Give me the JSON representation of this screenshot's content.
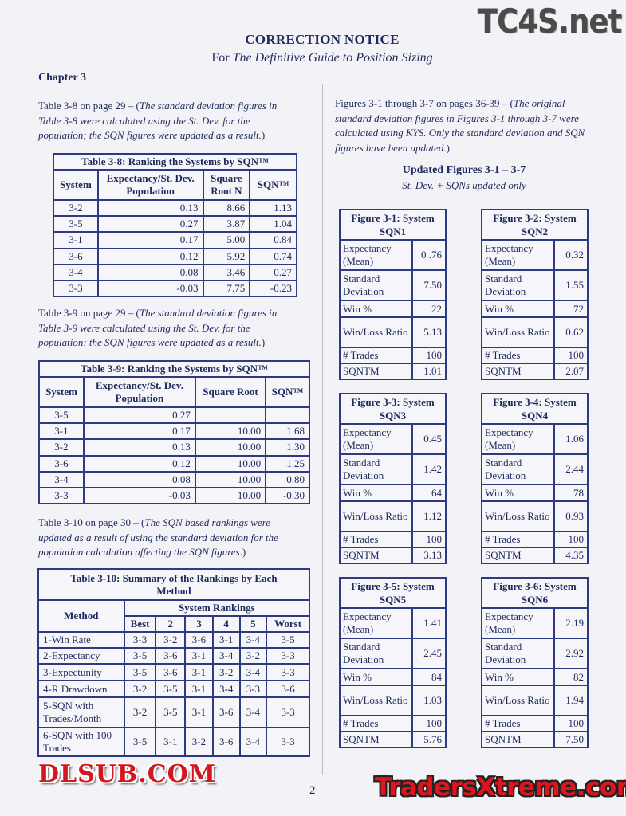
{
  "header": {
    "title": "CORRECTION NOTICE",
    "subtitle_prefix": "For ",
    "subtitle_book": "The Definitive Guide to Position Sizing"
  },
  "chapter": "Chapter 3",
  "left": {
    "para1": {
      "lead": "Table 3-8 on page 29 – (",
      "italic": "The standard deviation figures in Table 3-8 were calculated using the St. Dev. for the population; the SQN figures were updated as a result.",
      "tail": ")"
    },
    "table38": {
      "title": "Table 3-8: Ranking the Systems by SQN™",
      "headers": [
        "System",
        "Expectancy/St. Dev. Population",
        "Square Root N",
        "SQN™"
      ],
      "rows": [
        [
          "3-2",
          "0.13",
          "8.66",
          "1.13"
        ],
        [
          "3-5",
          "0.27",
          "3.87",
          "1.04"
        ],
        [
          "3-1",
          "0.17",
          "5.00",
          "0.84"
        ],
        [
          "3-6",
          "0.12",
          "5.92",
          "0.74"
        ],
        [
          "3-4",
          "0.08",
          "3.46",
          "0.27"
        ],
        [
          "3-3",
          "-0.03",
          "7.75",
          "-0.23"
        ]
      ]
    },
    "para2": {
      "lead": "Table 3-9 on page 29 – (",
      "italic": "The standard deviation figures in Table 3-9 were calculated using the St. Dev. for the population; the SQN figures were updated as a result.",
      "tail": ")"
    },
    "table39": {
      "title": "Table 3-9: Ranking the Systems by SQN™",
      "headers": [
        "System",
        "Expectancy/St. Dev. Population",
        "Square Root",
        "SQN™"
      ],
      "rows": [
        [
          "3-5",
          "0.27",
          "",
          ""
        ],
        [
          "3-1",
          "0.17",
          "10.00",
          "1.68"
        ],
        [
          "3-2",
          "0.13",
          "10.00",
          "1.30"
        ],
        [
          "3-6",
          "0.12",
          "10.00",
          "1.25"
        ],
        [
          "3-4",
          "0.08",
          "10.00",
          "0.80"
        ],
        [
          "3-3",
          "-0.03",
          "10.00",
          "-0.30"
        ]
      ]
    },
    "para3": {
      "lead": "Table 3-10 on page 30 – (",
      "italic": "The SQN based rankings were updated as a result of using the standard deviation for the population calculation affecting the SQN figures.",
      "tail": ")"
    },
    "table310": {
      "title": "Table 3-10: Summary of the Rankings by Each Method",
      "method_header": "Method",
      "group_header": "System Rankings",
      "rank_headers": [
        "Best",
        "2",
        "3",
        "4",
        "5",
        "Worst"
      ],
      "rows": [
        {
          "method": "1-Win Rate",
          "ranks": [
            "3-3",
            "3-2",
            "3-6",
            "3-1",
            "3-4",
            "3-5"
          ]
        },
        {
          "method": "2-Expectancy",
          "ranks": [
            "3-5",
            "3-6",
            "3-1",
            "3-4",
            "3-2",
            "3-3"
          ]
        },
        {
          "method": "3-Expectunity",
          "ranks": [
            "3-5",
            "3-6",
            "3-1",
            "3-2",
            "3-4",
            "3-3"
          ]
        },
        {
          "method": "4-R Drawdown",
          "ranks": [
            "3-2",
            "3-5",
            "3-1",
            "3-4",
            "3-3",
            "3-6"
          ]
        },
        {
          "method": "5-SQN with Trades/Month",
          "ranks": [
            "3-2",
            "3-5",
            "3-1",
            "3-6",
            "3-4",
            "3-3"
          ]
        },
        {
          "method": "6-SQN with 100 Trades",
          "ranks": [
            "3-5",
            "3-1",
            "3-2",
            "3-6",
            "3-4",
            "3-3"
          ]
        }
      ]
    }
  },
  "right": {
    "para": {
      "lead": "Figures 3-1 through 3-7 on pages 36-39 – (",
      "italic": "The original standard deviation figures in Figures 3-1 through 3-7 were calculated using KYS.  Only the standard deviation and SQN figures have been updated.",
      "tail": ")"
    },
    "updated_heading": "Updated Figures 3-1 – 3-7",
    "updated_sub": "St. Dev. + SQNs updated only",
    "row_labels": [
      "Expectancy (Mean)",
      "Standard Deviation",
      "Win %",
      "Win/Loss Ratio",
      "# Trades",
      "SQNTM"
    ],
    "figures": [
      {
        "title": "Figure 3-1: System SQN1",
        "values": [
          "0 .76",
          "7.50",
          "22",
          "5.13",
          "100",
          "1.01"
        ]
      },
      {
        "title": "Figure 3-2: System SQN2",
        "values": [
          "0.32",
          "1.55",
          "72",
          "0.62",
          "100",
          "2.07"
        ]
      },
      {
        "title": "Figure 3-3: System SQN3",
        "values": [
          "0.45",
          "1.42",
          "64",
          "1.12",
          "100",
          "3.13"
        ]
      },
      {
        "title": "Figure 3-4: System SQN4",
        "values": [
          "1.06",
          "2.44",
          "78",
          "0.93",
          "100",
          "4.35"
        ]
      },
      {
        "title": "Figure 3-5: System SQN5",
        "values": [
          "1.41",
          "2.45",
          "84",
          "1.03",
          "100",
          "5.76"
        ]
      },
      {
        "title": "Figure 3-6: System SQN6",
        "values": [
          "2.19",
          "2.92",
          "82",
          "1.94",
          "100",
          "7.50"
        ]
      }
    ]
  },
  "page_number": "2",
  "watermarks": {
    "top_right": "TC4S.net",
    "middle": "DLSUB.COM",
    "bottom_right": "TradersXtreme.com"
  },
  "colors": {
    "text": "#1e2a5c",
    "table_border": "#2d3c82",
    "watermark_red": "#d4171e"
  }
}
